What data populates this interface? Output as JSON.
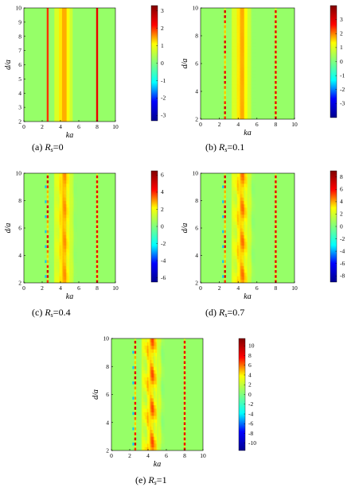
{
  "chart_data": [
    {
      "type": "heatmap",
      "caption": {
        "prefix": "(a) ",
        "var": "R",
        "sub": "s",
        "suffix": "=0"
      },
      "xlabel": "ka",
      "ylabel": "d/a",
      "xlim": [
        0,
        10
      ],
      "ylim": [
        2,
        10
      ],
      "xticks": [
        0,
        2,
        4,
        6,
        8,
        10
      ],
      "yticks": [
        2,
        3,
        4,
        5,
        6,
        7,
        8,
        9,
        10
      ],
      "colorbar": {
        "min": -3.3,
        "max": 3.3,
        "ticks": [
          -3,
          -2,
          -1,
          0,
          1,
          2,
          3
        ]
      },
      "resonance_lines_ka": [
        2.6,
        8.0
      ],
      "ripple_strength": 0,
      "pattern": "uniform vertical bands, no variation with d/a"
    },
    {
      "type": "heatmap",
      "caption": {
        "prefix": "(b) ",
        "var": "R",
        "sub": "s",
        "suffix": "=0.1"
      },
      "xlabel": "ka",
      "ylabel": "d/a",
      "xlim": [
        0,
        10
      ],
      "ylim": [
        2,
        10
      ],
      "xticks": [
        0,
        2,
        4,
        6,
        8,
        10
      ],
      "yticks": [
        2,
        4,
        6,
        8,
        10
      ],
      "colorbar": {
        "min": -4,
        "max": 4,
        "ticks": [
          -3,
          -2,
          -1,
          0,
          1,
          2,
          3
        ]
      },
      "resonance_lines_ka": [
        2.6,
        8.0
      ],
      "ripple_strength": 0.05,
      "pattern": "vertical bands"
    },
    {
      "type": "heatmap",
      "caption": {
        "prefix": "(c) ",
        "var": "R",
        "sub": "s",
        "suffix": "=0.4"
      },
      "xlabel": "ka",
      "ylabel": "d/a",
      "xlim": [
        0,
        10
      ],
      "ylim": [
        2,
        10
      ],
      "xticks": [
        0,
        2,
        4,
        6,
        8,
        10
      ],
      "yticks": [
        2,
        4,
        6,
        8,
        10
      ],
      "colorbar": {
        "min": -6.5,
        "max": 6.5,
        "ticks": [
          -6,
          -4,
          -2,
          0,
          2,
          4,
          6
        ]
      },
      "resonance_lines_ka": [
        2.6,
        8.0
      ],
      "ripple_strength": 0.35,
      "pattern": "vertical bands with periodic modulation along d/a"
    },
    {
      "type": "heatmap",
      "caption": {
        "prefix": "(d) ",
        "var": "R",
        "sub": "s",
        "suffix": "=0.7"
      },
      "xlabel": "ka",
      "ylabel": "d/a",
      "xlim": [
        0,
        10
      ],
      "ylim": [
        2,
        10
      ],
      "xticks": [
        0,
        2,
        4,
        6,
        8,
        10
      ],
      "yticks": [
        2,
        4,
        6,
        8,
        10
      ],
      "colorbar": {
        "min": -9,
        "max": 9,
        "ticks": [
          -8,
          -6,
          -4,
          -2,
          0,
          2,
          4,
          6,
          8
        ]
      },
      "resonance_lines_ka": [
        2.6,
        8.0
      ],
      "ripple_strength": 0.6,
      "pattern": "vertical bands with periodic modulation along d/a"
    },
    {
      "type": "heatmap",
      "caption": {
        "prefix": "(e) ",
        "var": "R",
        "sub": "s",
        "suffix": "=1"
      },
      "xlabel": "ka",
      "ylabel": "d/a",
      "xlim": [
        0,
        10
      ],
      "ylim": [
        2,
        10
      ],
      "xticks": [
        0,
        2,
        4,
        6,
        8,
        10
      ],
      "yticks": [
        2,
        4,
        6,
        8,
        10
      ],
      "colorbar": {
        "min": -11.5,
        "max": 11.5,
        "ticks": [
          -10,
          -8,
          -6,
          -4,
          -2,
          0,
          2,
          4,
          6,
          8,
          10
        ]
      },
      "resonance_lines_ka": [
        2.6,
        8.0
      ],
      "ripple_strength": 0.8,
      "pattern": "vertical bands with strong periodic modulation along d/a"
    }
  ],
  "colormap": [
    "#00008f",
    "#0000ff",
    "#00ffff",
    "#7fff7f",
    "#ffff00",
    "#ff0000",
    "#800000"
  ]
}
